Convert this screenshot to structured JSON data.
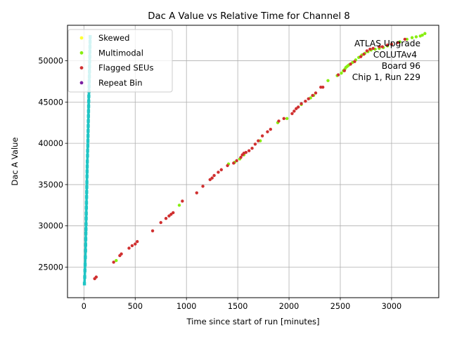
{
  "chart_data": {
    "type": "scatter",
    "title": "Dac A Value vs Relative Time for Channel 8",
    "xlabel": "Time since start of run [minutes]",
    "ylabel": "Dac A Value",
    "xlim": [
      -160,
      3460
    ],
    "ylim": [
      21300,
      54300
    ],
    "xticks": [
      0,
      500,
      1000,
      1500,
      2000,
      2500,
      3000
    ],
    "yticks": [
      25000,
      30000,
      35000,
      40000,
      45000,
      50000
    ],
    "grid": true,
    "legend_position": "top-left",
    "annotation": [
      "ATLAS Upgrade",
      "COLUTAv4",
      "Board 96",
      "Chip 1, Run 229"
    ],
    "series": [
      {
        "name": "Main",
        "color": "#20c5c5",
        "in_legend": false,
        "points": [
          [
            5,
            23000
          ],
          [
            8,
            23800
          ],
          [
            10,
            24600
          ],
          [
            12,
            25300
          ],
          [
            14,
            26200
          ],
          [
            16,
            27000
          ],
          [
            17,
            27700
          ],
          [
            18,
            28400
          ],
          [
            19,
            29100
          ],
          [
            20,
            29600
          ],
          [
            21,
            30200
          ],
          [
            22,
            30900
          ],
          [
            23,
            31500
          ],
          [
            24,
            32200
          ],
          [
            25,
            32800
          ],
          [
            26,
            33500
          ],
          [
            27,
            34100
          ],
          [
            28,
            34700
          ],
          [
            29,
            35300
          ],
          [
            30,
            36000
          ],
          [
            31,
            36600
          ],
          [
            32,
            37200
          ],
          [
            33,
            37800
          ],
          [
            35,
            38500
          ],
          [
            36,
            39100
          ],
          [
            38,
            39700
          ],
          [
            39,
            40300
          ],
          [
            40,
            40900
          ],
          [
            41,
            41500
          ],
          [
            42,
            42100
          ],
          [
            43,
            42700
          ],
          [
            44,
            43300
          ],
          [
            45,
            43900
          ],
          [
            46,
            44500
          ],
          [
            47,
            45100
          ],
          [
            48,
            45700
          ],
          [
            50,
            46300
          ],
          [
            51,
            46900
          ],
          [
            52,
            47500
          ],
          [
            53,
            48100
          ],
          [
            54,
            48700
          ],
          [
            55,
            49300
          ],
          [
            56,
            49900
          ],
          [
            57,
            50500
          ],
          [
            58,
            51100
          ],
          [
            59,
            51700
          ],
          [
            60,
            52300
          ],
          [
            61,
            52900
          ]
        ]
      },
      {
        "name": "Skewed",
        "color": "#ffff33",
        "in_legend": true,
        "points": []
      },
      {
        "name": "Multimodal",
        "color": "#88ee11",
        "in_legend": true,
        "points": [
          [
            315,
            25800
          ],
          [
            930,
            32500
          ],
          [
            1410,
            37500
          ],
          [
            1470,
            37700
          ],
          [
            1520,
            38100
          ],
          [
            1560,
            38600
          ],
          [
            1720,
            40300
          ],
          [
            1890,
            42500
          ],
          [
            1980,
            43000
          ],
          [
            2120,
            44700
          ],
          [
            2210,
            45500
          ],
          [
            2240,
            45800
          ],
          [
            2380,
            47600
          ],
          [
            2470,
            48200
          ],
          [
            2510,
            48500
          ],
          [
            2530,
            48800
          ],
          [
            2545,
            49000
          ],
          [
            2555,
            49200
          ],
          [
            2565,
            49300
          ],
          [
            2575,
            49400
          ],
          [
            2585,
            49500
          ],
          [
            2600,
            49600
          ],
          [
            2620,
            49800
          ],
          [
            2650,
            50100
          ],
          [
            2680,
            50400
          ],
          [
            2710,
            50700
          ],
          [
            2740,
            50900
          ],
          [
            2770,
            51100
          ],
          [
            2800,
            51300
          ],
          [
            2840,
            51400
          ],
          [
            2880,
            51500
          ],
          [
            2920,
            51600
          ],
          [
            2960,
            51800
          ],
          [
            3000,
            52000
          ],
          [
            3080,
            52300
          ],
          [
            3150,
            52600
          ],
          [
            3200,
            52800
          ],
          [
            3240,
            52900
          ],
          [
            3280,
            53000
          ],
          [
            3300,
            53100
          ],
          [
            3325,
            53300
          ]
        ]
      },
      {
        "name": "Flagged SEUs",
        "color": "#d03030",
        "in_legend": true,
        "points": [
          [
            105,
            23600
          ],
          [
            120,
            23800
          ],
          [
            290,
            25600
          ],
          [
            350,
            26400
          ],
          [
            365,
            26600
          ],
          [
            440,
            27300
          ],
          [
            470,
            27600
          ],
          [
            500,
            27800
          ],
          [
            520,
            28100
          ],
          [
            670,
            29400
          ],
          [
            750,
            30400
          ],
          [
            800,
            30900
          ],
          [
            830,
            31200
          ],
          [
            850,
            31400
          ],
          [
            870,
            31600
          ],
          [
            960,
            33000
          ],
          [
            1100,
            34000
          ],
          [
            1160,
            34800
          ],
          [
            1230,
            35600
          ],
          [
            1250,
            35800
          ],
          [
            1270,
            36100
          ],
          [
            1310,
            36500
          ],
          [
            1340,
            36800
          ],
          [
            1400,
            37300
          ],
          [
            1460,
            37600
          ],
          [
            1490,
            37900
          ],
          [
            1530,
            38300
          ],
          [
            1545,
            38600
          ],
          [
            1560,
            38800
          ],
          [
            1580,
            38900
          ],
          [
            1610,
            39100
          ],
          [
            1640,
            39400
          ],
          [
            1670,
            39900
          ],
          [
            1700,
            40300
          ],
          [
            1740,
            40900
          ],
          [
            1790,
            41400
          ],
          [
            1820,
            41700
          ],
          [
            1900,
            42700
          ],
          [
            1950,
            43000
          ],
          [
            2030,
            43600
          ],
          [
            2050,
            43900
          ],
          [
            2070,
            44200
          ],
          [
            2090,
            44400
          ],
          [
            2120,
            44800
          ],
          [
            2160,
            45100
          ],
          [
            2190,
            45400
          ],
          [
            2230,
            45800
          ],
          [
            2260,
            46100
          ],
          [
            2310,
            46800
          ],
          [
            2330,
            46800
          ],
          [
            2480,
            48300
          ],
          [
            2540,
            48800
          ],
          [
            2600,
            49600
          ],
          [
            2640,
            49900
          ],
          [
            2700,
            50500
          ],
          [
            2730,
            50800
          ],
          [
            2760,
            51200
          ],
          [
            2790,
            51400
          ],
          [
            2820,
            51500
          ],
          [
            2880,
            51700
          ],
          [
            2910,
            51700
          ],
          [
            2960,
            51900
          ],
          [
            3000,
            52000
          ],
          [
            3060,
            52200
          ],
          [
            3130,
            52600
          ]
        ]
      },
      {
        "name": "Repeat Bin",
        "color": "#7b1fa2",
        "in_legend": true,
        "points": []
      }
    ]
  }
}
